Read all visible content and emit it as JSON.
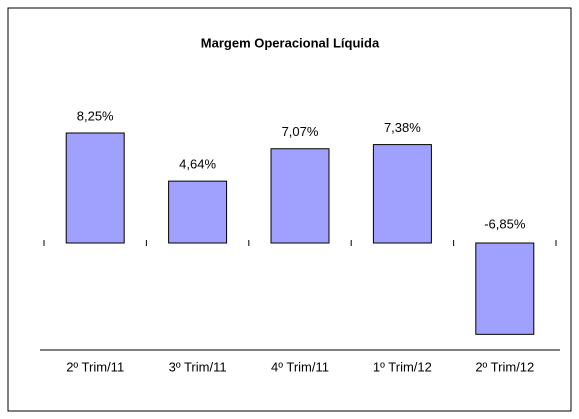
{
  "chart_data": {
    "type": "bar",
    "title": "Margem Operacional Líquida",
    "categories": [
      "2º Trim/11",
      "3º Trim/11",
      "4º Trim/11",
      "1º Trim/12",
      "2º Trim/12"
    ],
    "values": [
      8.25,
      4.64,
      7.07,
      7.38,
      -6.85
    ],
    "value_labels": [
      "8,25%",
      "4,64%",
      "7,07%",
      "7,38%",
      "-6,85%"
    ],
    "color": "#a0a0ff"
  }
}
